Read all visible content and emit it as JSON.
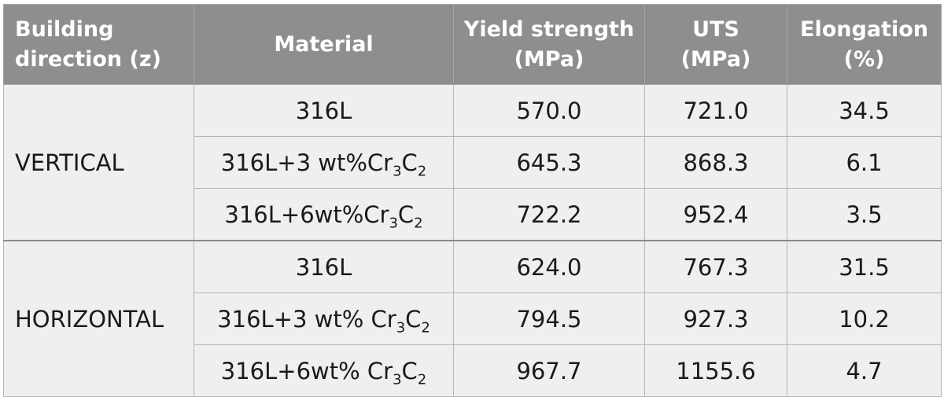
{
  "table": {
    "headers": [
      [
        "Building",
        "direction (z)"
      ],
      [
        "Material"
      ],
      [
        "Yield strength",
        "(MPa)"
      ],
      [
        "UTS",
        "(MPa)"
      ],
      [
        "Elongation",
        "(%)"
      ]
    ],
    "groups": [
      {
        "direction": "VERTICAL",
        "rows": [
          {
            "material": {
              "base": "316L",
              "sub": ""
            },
            "yield": "570.0",
            "uts": "721.0",
            "elongation": "34.5"
          },
          {
            "material": {
              "base": "316L+3 wt%Cr",
              "sub": "3",
              "mid": "C",
              "sub2": "2"
            },
            "yield": "645.3",
            "uts": "868.3",
            "elongation": "6.1"
          },
          {
            "material": {
              "base": "316L+6wt%Cr",
              "sub": "3",
              "mid": "C",
              "sub2": "2"
            },
            "yield": "722.2",
            "uts": "952.4",
            "elongation": "3.5"
          }
        ]
      },
      {
        "direction": "HORIZONTAL",
        "rows": [
          {
            "material": {
              "base": "316L",
              "sub": ""
            },
            "yield": "624.0",
            "uts": "767.3",
            "elongation": "31.5"
          },
          {
            "material": {
              "base": "316L+3 wt% Cr",
              "sub": "3",
              "mid": "C",
              "sub2": "2"
            },
            "yield": "794.5",
            "uts": "927.3",
            "elongation": "10.2"
          },
          {
            "material": {
              "base": "316L+6wt% Cr",
              "sub": "3",
              "mid": "C",
              "sub2": "2"
            },
            "yield": "967.7",
            "uts": "1155.6",
            "elongation": "4.7"
          }
        ]
      }
    ]
  }
}
